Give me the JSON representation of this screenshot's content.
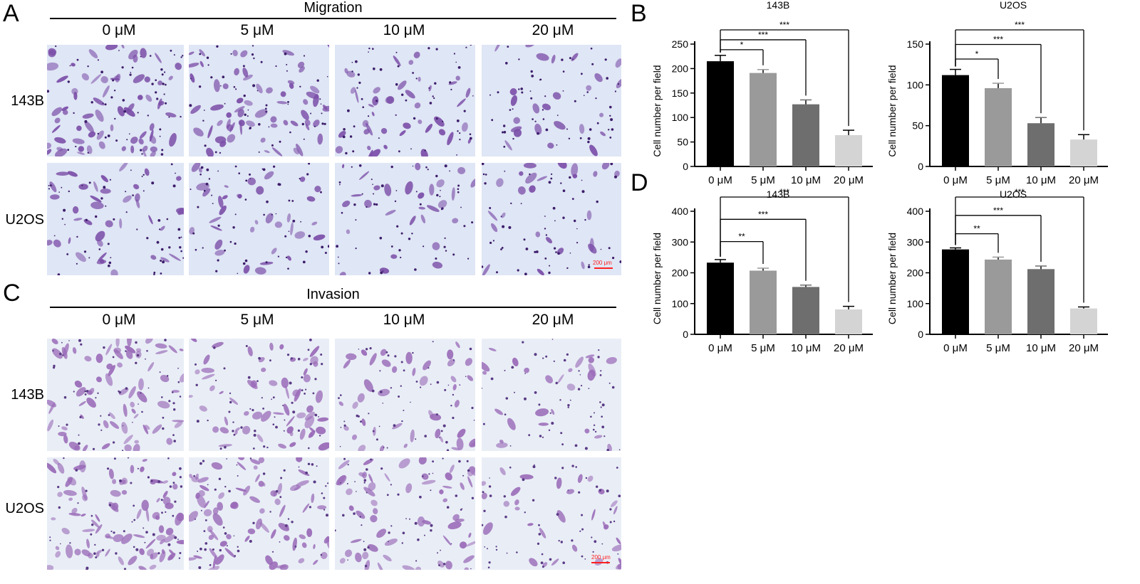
{
  "panels": {
    "A": "A",
    "B": "B",
    "C": "C",
    "D": "D"
  },
  "migration": {
    "title": "Migration",
    "columns": [
      "0 μM",
      "5 μM",
      "10 μM",
      "20 μM"
    ],
    "rows": [
      "143B",
      "U2OS"
    ],
    "scale_bar": "200 μm",
    "colors": {
      "background": "#dfe6f5",
      "cell": "#7b4ea8",
      "dark": "#3d1d6b"
    }
  },
  "invasion": {
    "title": "Invasion",
    "columns": [
      "0 μM",
      "5 μM",
      "10 μM",
      "20 μM"
    ],
    "rows": [
      "143B",
      "U2OS"
    ],
    "scale_bar": "200 μm",
    "colors": {
      "background": "#e9eef6",
      "cell": "#9a6bb8",
      "dark": "#5a3a86"
    }
  },
  "chart_data": [
    {
      "id": "B-143B",
      "type": "bar",
      "title": "143B",
      "ylabel": "Cell number per field",
      "categories": [
        "0 μM",
        "5 μM",
        "10 μM",
        "20 μM"
      ],
      "values": [
        215,
        191,
        127,
        64
      ],
      "errors": [
        12,
        7,
        9,
        10
      ],
      "ylim": [
        0,
        250
      ],
      "yticks": [
        0,
        50,
        100,
        150,
        200,
        250
      ],
      "bar_colors": [
        "#000000",
        "#9a9a9a",
        "#6e6e6e",
        "#d4d4d4"
      ],
      "significance": [
        {
          "to": 1,
          "label": "*"
        },
        {
          "to": 2,
          "label": "***"
        },
        {
          "to": 3,
          "label": "***"
        }
      ]
    },
    {
      "id": "B-U2OS",
      "type": "bar",
      "title": "U2OS",
      "ylabel": "Cell number per field",
      "categories": [
        "0 μM",
        "5 μM",
        "10 μM",
        "20 μM"
      ],
      "values": [
        112,
        96,
        53,
        33
      ],
      "errors": [
        7,
        6,
        7,
        6
      ],
      "ylim": [
        0,
        150
      ],
      "yticks": [
        0,
        50,
        100,
        150
      ],
      "bar_colors": [
        "#000000",
        "#9a9a9a",
        "#6e6e6e",
        "#d4d4d4"
      ],
      "significance": [
        {
          "to": 1,
          "label": "*"
        },
        {
          "to": 2,
          "label": "***"
        },
        {
          "to": 3,
          "label": "***"
        }
      ]
    },
    {
      "id": "D-143B",
      "type": "bar",
      "title": "143B",
      "ylabel": "Cell number per field",
      "categories": [
        "0 μM",
        "5 μM",
        "10 μM",
        "20 μM"
      ],
      "values": [
        233,
        207,
        154,
        81
      ],
      "errors": [
        10,
        8,
        6,
        10
      ],
      "ylim": [
        0,
        400
      ],
      "yticks": [
        0,
        100,
        200,
        300,
        400
      ],
      "bar_colors": [
        "#000000",
        "#9a9a9a",
        "#6e6e6e",
        "#d4d4d4"
      ],
      "significance": [
        {
          "to": 1,
          "label": "**"
        },
        {
          "to": 2,
          "label": "***"
        },
        {
          "to": 3,
          "label": "***"
        }
      ]
    },
    {
      "id": "D-U2OS",
      "type": "bar",
      "title": "U2OS",
      "ylabel": "Cell number per field",
      "categories": [
        "0 μM",
        "5 μM",
        "10 μM",
        "20 μM"
      ],
      "values": [
        276,
        243,
        212,
        84
      ],
      "errors": [
        5,
        8,
        10,
        5
      ],
      "ylim": [
        0,
        400
      ],
      "yticks": [
        0,
        100,
        200,
        300,
        400
      ],
      "bar_colors": [
        "#000000",
        "#9a9a9a",
        "#6e6e6e",
        "#d4d4d4"
      ],
      "significance": [
        {
          "to": 1,
          "label": "**"
        },
        {
          "to": 2,
          "label": "***"
        },
        {
          "to": 3,
          "label": "***"
        }
      ]
    }
  ]
}
